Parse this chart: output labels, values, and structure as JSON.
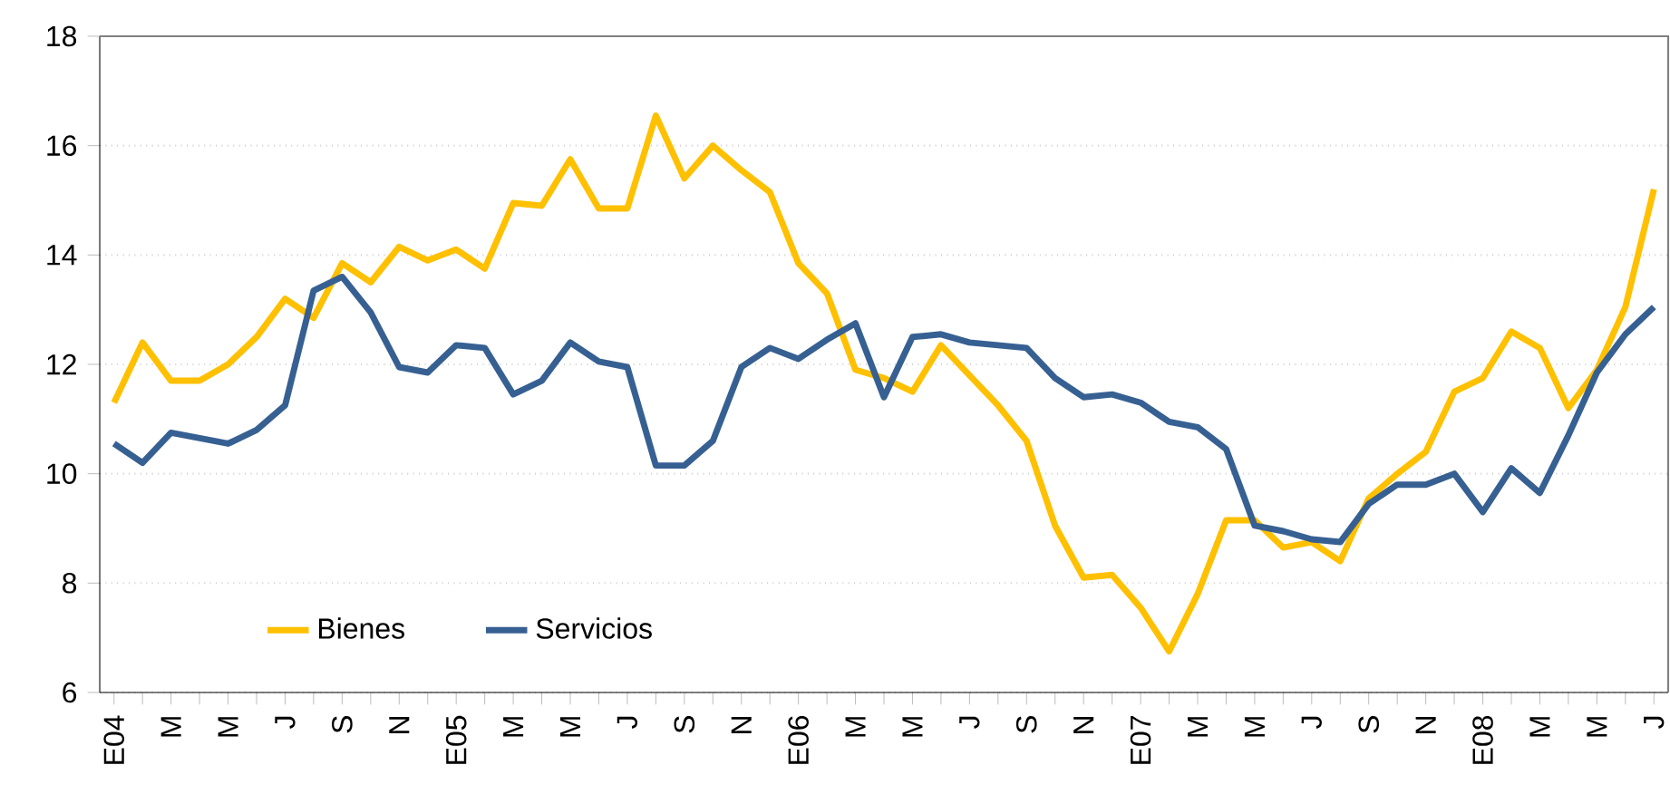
{
  "chart_data": {
    "type": "line",
    "categories": [
      "E04",
      null,
      "M",
      null,
      "M",
      null,
      "J",
      null,
      "S",
      null,
      "N",
      null,
      "E05",
      null,
      "M",
      null,
      "M",
      null,
      "J",
      null,
      "S",
      null,
      "N",
      null,
      "E06",
      null,
      "M",
      null,
      "M",
      null,
      "J",
      null,
      "S",
      null,
      "N",
      null,
      "E07",
      null,
      "M",
      null,
      "M",
      null,
      "J",
      null,
      "S",
      null,
      "N",
      null,
      "E08",
      null,
      "M",
      null,
      "M",
      null,
      "J"
    ],
    "series": [
      {
        "name": "Bienes",
        "color": "#ffc000",
        "values": [
          11.3,
          12.4,
          11.7,
          11.7,
          12.0,
          12.5,
          13.2,
          12.85,
          13.85,
          13.5,
          14.15,
          13.9,
          14.1,
          13.75,
          14.95,
          14.9,
          15.75,
          14.85,
          14.85,
          16.55,
          15.4,
          16.0,
          15.55,
          15.15,
          13.85,
          13.3,
          11.9,
          11.75,
          11.5,
          12.35,
          11.8,
          11.25,
          10.6,
          9.05,
          8.1,
          8.15,
          7.55,
          6.75,
          7.8,
          9.15,
          9.15,
          8.65,
          8.75,
          8.4,
          9.55,
          10.0,
          10.4,
          11.5,
          11.75,
          12.6,
          12.3,
          11.2,
          11.9,
          13.05,
          15.2
        ]
      },
      {
        "name": "Servicios",
        "color": "#376092",
        "values": [
          10.55,
          10.2,
          10.75,
          10.65,
          10.55,
          10.8,
          11.25,
          13.35,
          13.6,
          12.95,
          11.95,
          11.85,
          12.35,
          12.3,
          11.45,
          11.7,
          12.4,
          12.05,
          11.95,
          10.15,
          10.15,
          10.6,
          11.95,
          12.3,
          12.1,
          12.45,
          12.75,
          11.4,
          12.5,
          12.55,
          12.4,
          12.35,
          12.3,
          11.75,
          11.4,
          11.45,
          11.3,
          10.95,
          10.85,
          10.45,
          9.05,
          8.95,
          8.8,
          8.75,
          9.45,
          9.8,
          9.8,
          10.0,
          9.3,
          10.1,
          9.65,
          10.7,
          11.85,
          12.55,
          13.05
        ]
      }
    ],
    "ylim": [
      6,
      18
    ],
    "yticks": [
      6,
      8,
      10,
      12,
      14,
      16,
      18
    ],
    "grid": "y",
    "legend": "bottom left",
    "marker": "none",
    "line_style": "solid"
  }
}
